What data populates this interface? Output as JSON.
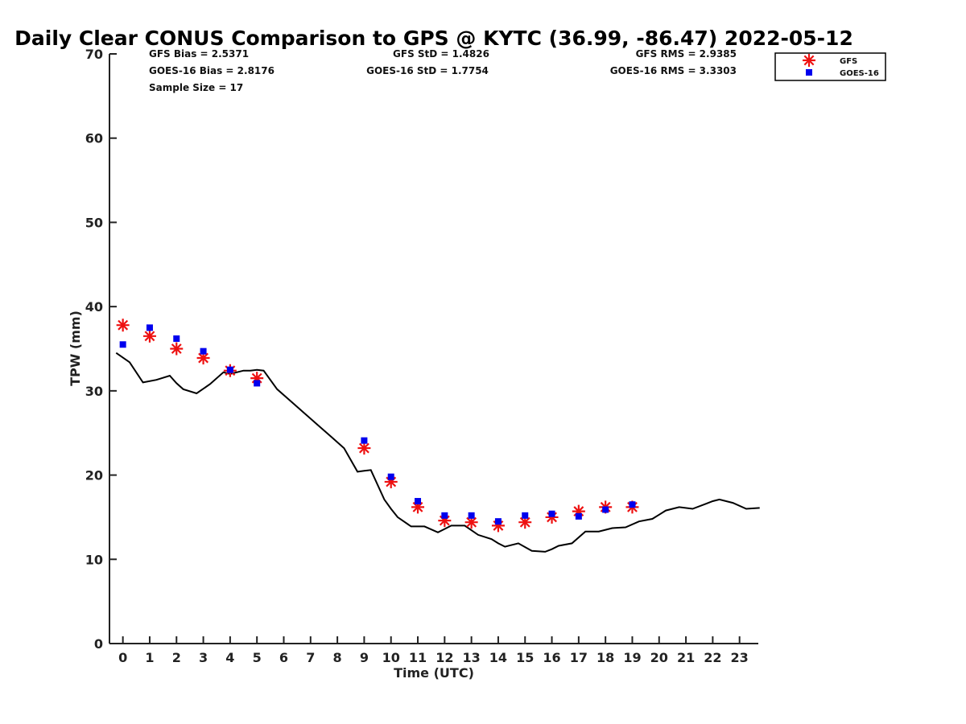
{
  "chart_data": {
    "type": "line",
    "title": "Daily Clear CONUS Comparison to GPS @ KYTC (36.99, -86.47) 2022-05-12",
    "xlabel": "Time (UTC)",
    "ylabel": "TPW (mm)",
    "xlim": [
      -0.5,
      23.7
    ],
    "ylim": [
      0,
      70
    ],
    "xticks": [
      "0",
      "1",
      "2",
      "3",
      "4",
      "5",
      "6",
      "7",
      "8",
      "9",
      "10",
      "11",
      "12",
      "13",
      "14",
      "15",
      "16",
      "17",
      "18",
      "19",
      "20",
      "21",
      "22",
      "23"
    ],
    "yticks": [
      "0",
      "10",
      "20",
      "30",
      "40",
      "50",
      "60",
      "70"
    ],
    "grid": false,
    "legend_position": "top-right",
    "stats": {
      "gfs_bias": "GFS Bias = 2.5371",
      "goes_bias": "GOES-16 Bias = 2.8176",
      "sample_size": "Sample Size = 17",
      "gfs_std": "GFS StD = 1.4826",
      "goes_std": "GOES-16 StD = 1.7754",
      "gfs_rms": "GFS RMS = 2.9385",
      "goes_rms": "GOES-16 RMS = 3.3303"
    },
    "series": [
      {
        "name": "",
        "style": "line",
        "color": "#000000",
        "x": [
          -0.25,
          0.25,
          0.75,
          1.25,
          1.75,
          2.0,
          2.25,
          2.75,
          3.25,
          3.75,
          4.0,
          4.5,
          4.75,
          5.0,
          5.25,
          5.75,
          6.25,
          6.75,
          7.25,
          7.75,
          8.25,
          8.75,
          9.0,
          9.25,
          9.75,
          10.0,
          10.25,
          10.75,
          11.25,
          11.75,
          12.0,
          12.25,
          12.75,
          13.25,
          13.75,
          14.0,
          14.25,
          14.75,
          15.25,
          15.75,
          16.0,
          16.25,
          16.75,
          17.25,
          17.75,
          18.0,
          18.25,
          18.75,
          19.25,
          19.75,
          20.0,
          20.25,
          20.75,
          21.25,
          21.75,
          22.0,
          22.25,
          22.75,
          23.25,
          23.75
        ],
        "y": [
          34.5,
          33.4,
          31.0,
          31.3,
          31.8,
          30.9,
          30.2,
          29.7,
          30.8,
          32.2,
          32.0,
          32.4,
          32.4,
          32.5,
          32.4,
          30.2,
          28.8,
          27.4,
          26.0,
          24.6,
          23.2,
          20.4,
          20.5,
          20.6,
          17.1,
          16.0,
          15.0,
          13.9,
          13.9,
          13.2,
          13.6,
          14.0,
          14.0,
          12.9,
          12.4,
          11.9,
          11.5,
          11.9,
          11.0,
          10.9,
          11.2,
          11.6,
          11.9,
          13.3,
          13.3,
          13.5,
          13.7,
          13.8,
          14.5,
          14.8,
          15.3,
          15.8,
          16.2,
          16.0,
          16.6,
          16.9,
          17.1,
          16.7,
          16.0,
          16.1
        ]
      },
      {
        "name": "GFS",
        "style": "marker-star",
        "color": "#ee1111",
        "x": [
          0,
          1,
          2,
          3,
          4,
          5,
          9,
          10,
          11,
          12,
          13,
          14,
          15,
          16,
          17,
          18,
          19
        ],
        "y": [
          37.8,
          36.5,
          35.0,
          33.9,
          32.4,
          31.5,
          23.2,
          19.2,
          16.2,
          14.6,
          14.4,
          14.0,
          14.4,
          15.0,
          15.7,
          16.2,
          16.2
        ]
      },
      {
        "name": "GOES-16",
        "style": "marker-square",
        "color": "#0000ee",
        "x": [
          0,
          1,
          2,
          3,
          4,
          5,
          9,
          10,
          11,
          12,
          13,
          14,
          15,
          16,
          17,
          18,
          19
        ],
        "y": [
          35.5,
          37.5,
          36.2,
          34.7,
          32.5,
          30.9,
          24.1,
          19.8,
          16.9,
          15.2,
          15.2,
          14.5,
          15.2,
          15.4,
          15.1,
          15.9,
          16.5
        ]
      }
    ]
  }
}
